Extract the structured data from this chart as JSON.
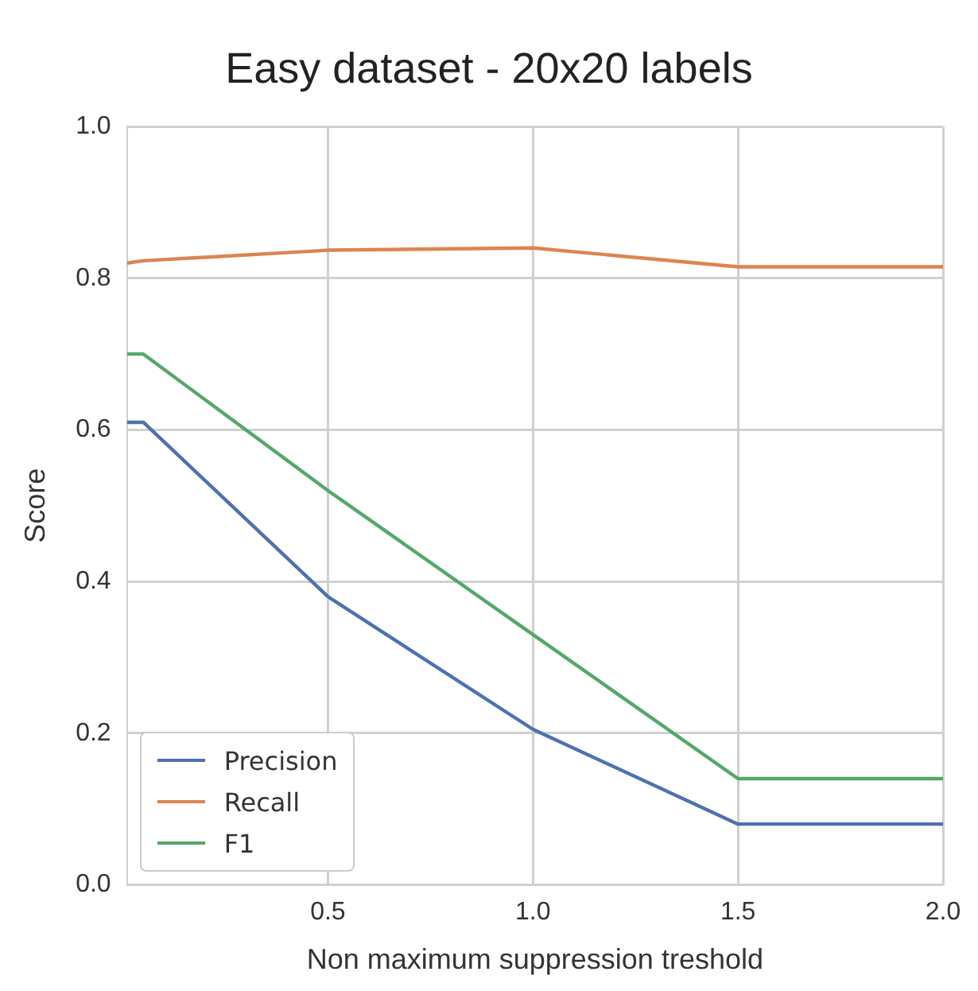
{
  "chart_data": {
    "type": "line",
    "title": "Easy dataset - 20x20 labels",
    "xlabel": "Non maximum suppression treshold",
    "ylabel": "Score",
    "x": [
      0.01,
      0.05,
      0.5,
      1.0,
      1.5,
      2.0
    ],
    "series": [
      {
        "name": "Precision",
        "color": "#4c72b0",
        "values": [
          0.61,
          0.61,
          0.38,
          0.205,
          0.08,
          0.08
        ]
      },
      {
        "name": "Recall",
        "color": "#dd8452",
        "values": [
          0.82,
          0.823,
          0.837,
          0.84,
          0.815,
          0.815
        ]
      },
      {
        "name": "F1",
        "color": "#55a868",
        "values": [
          0.7,
          0.7,
          0.52,
          0.33,
          0.14,
          0.14
        ]
      }
    ],
    "xlim": [
      0.01,
      2.0
    ],
    "ylim": [
      0,
      1
    ],
    "xticks": [
      {
        "value": 0.5,
        "label": "0.5"
      },
      {
        "value": 1.0,
        "label": "1.0"
      },
      {
        "value": 1.5,
        "label": "1.5"
      },
      {
        "value": 2.0,
        "label": "2.0"
      }
    ],
    "yticks": [
      {
        "value": 0,
        "label": "0.0"
      },
      {
        "value": 0.2,
        "label": "0.2"
      },
      {
        "value": 0.4,
        "label": "0.4"
      },
      {
        "value": 0.6,
        "label": "0.6"
      },
      {
        "value": 0.8,
        "label": "0.8"
      },
      {
        "value": 1.0,
        "label": "1.0"
      }
    ],
    "grid": true,
    "legend": "bottom left",
    "marker": "none",
    "line_style": "solid"
  }
}
